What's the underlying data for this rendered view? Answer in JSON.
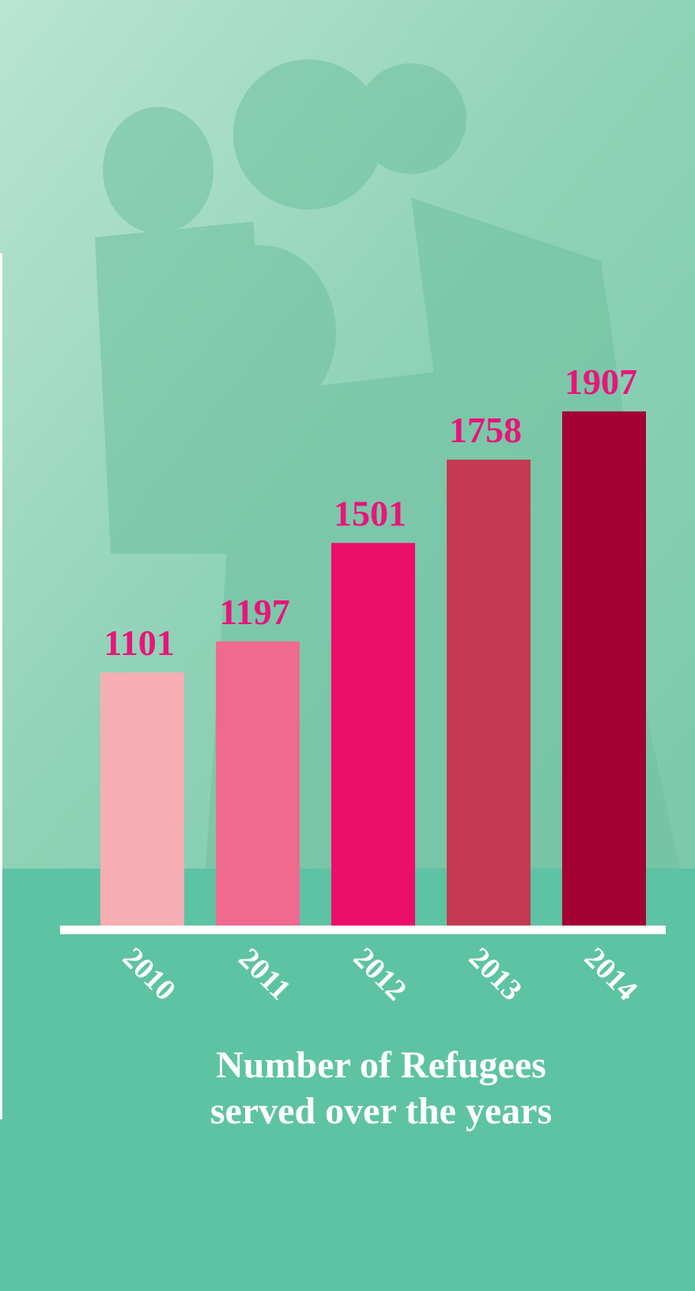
{
  "chart_data": {
    "type": "bar",
    "title": "Number of Refugees served over the years",
    "categories": [
      "2010",
      "2011",
      "2012",
      "2013",
      "2014"
    ],
    "values": [
      1101,
      1197,
      1501,
      1758,
      1907
    ],
    "colors": [
      "#f6aeb2",
      "#ee6a8f",
      "#ec0f6a",
      "#c43a52",
      "#a30033"
    ],
    "ylim": [
      320,
      2000
    ]
  }
}
